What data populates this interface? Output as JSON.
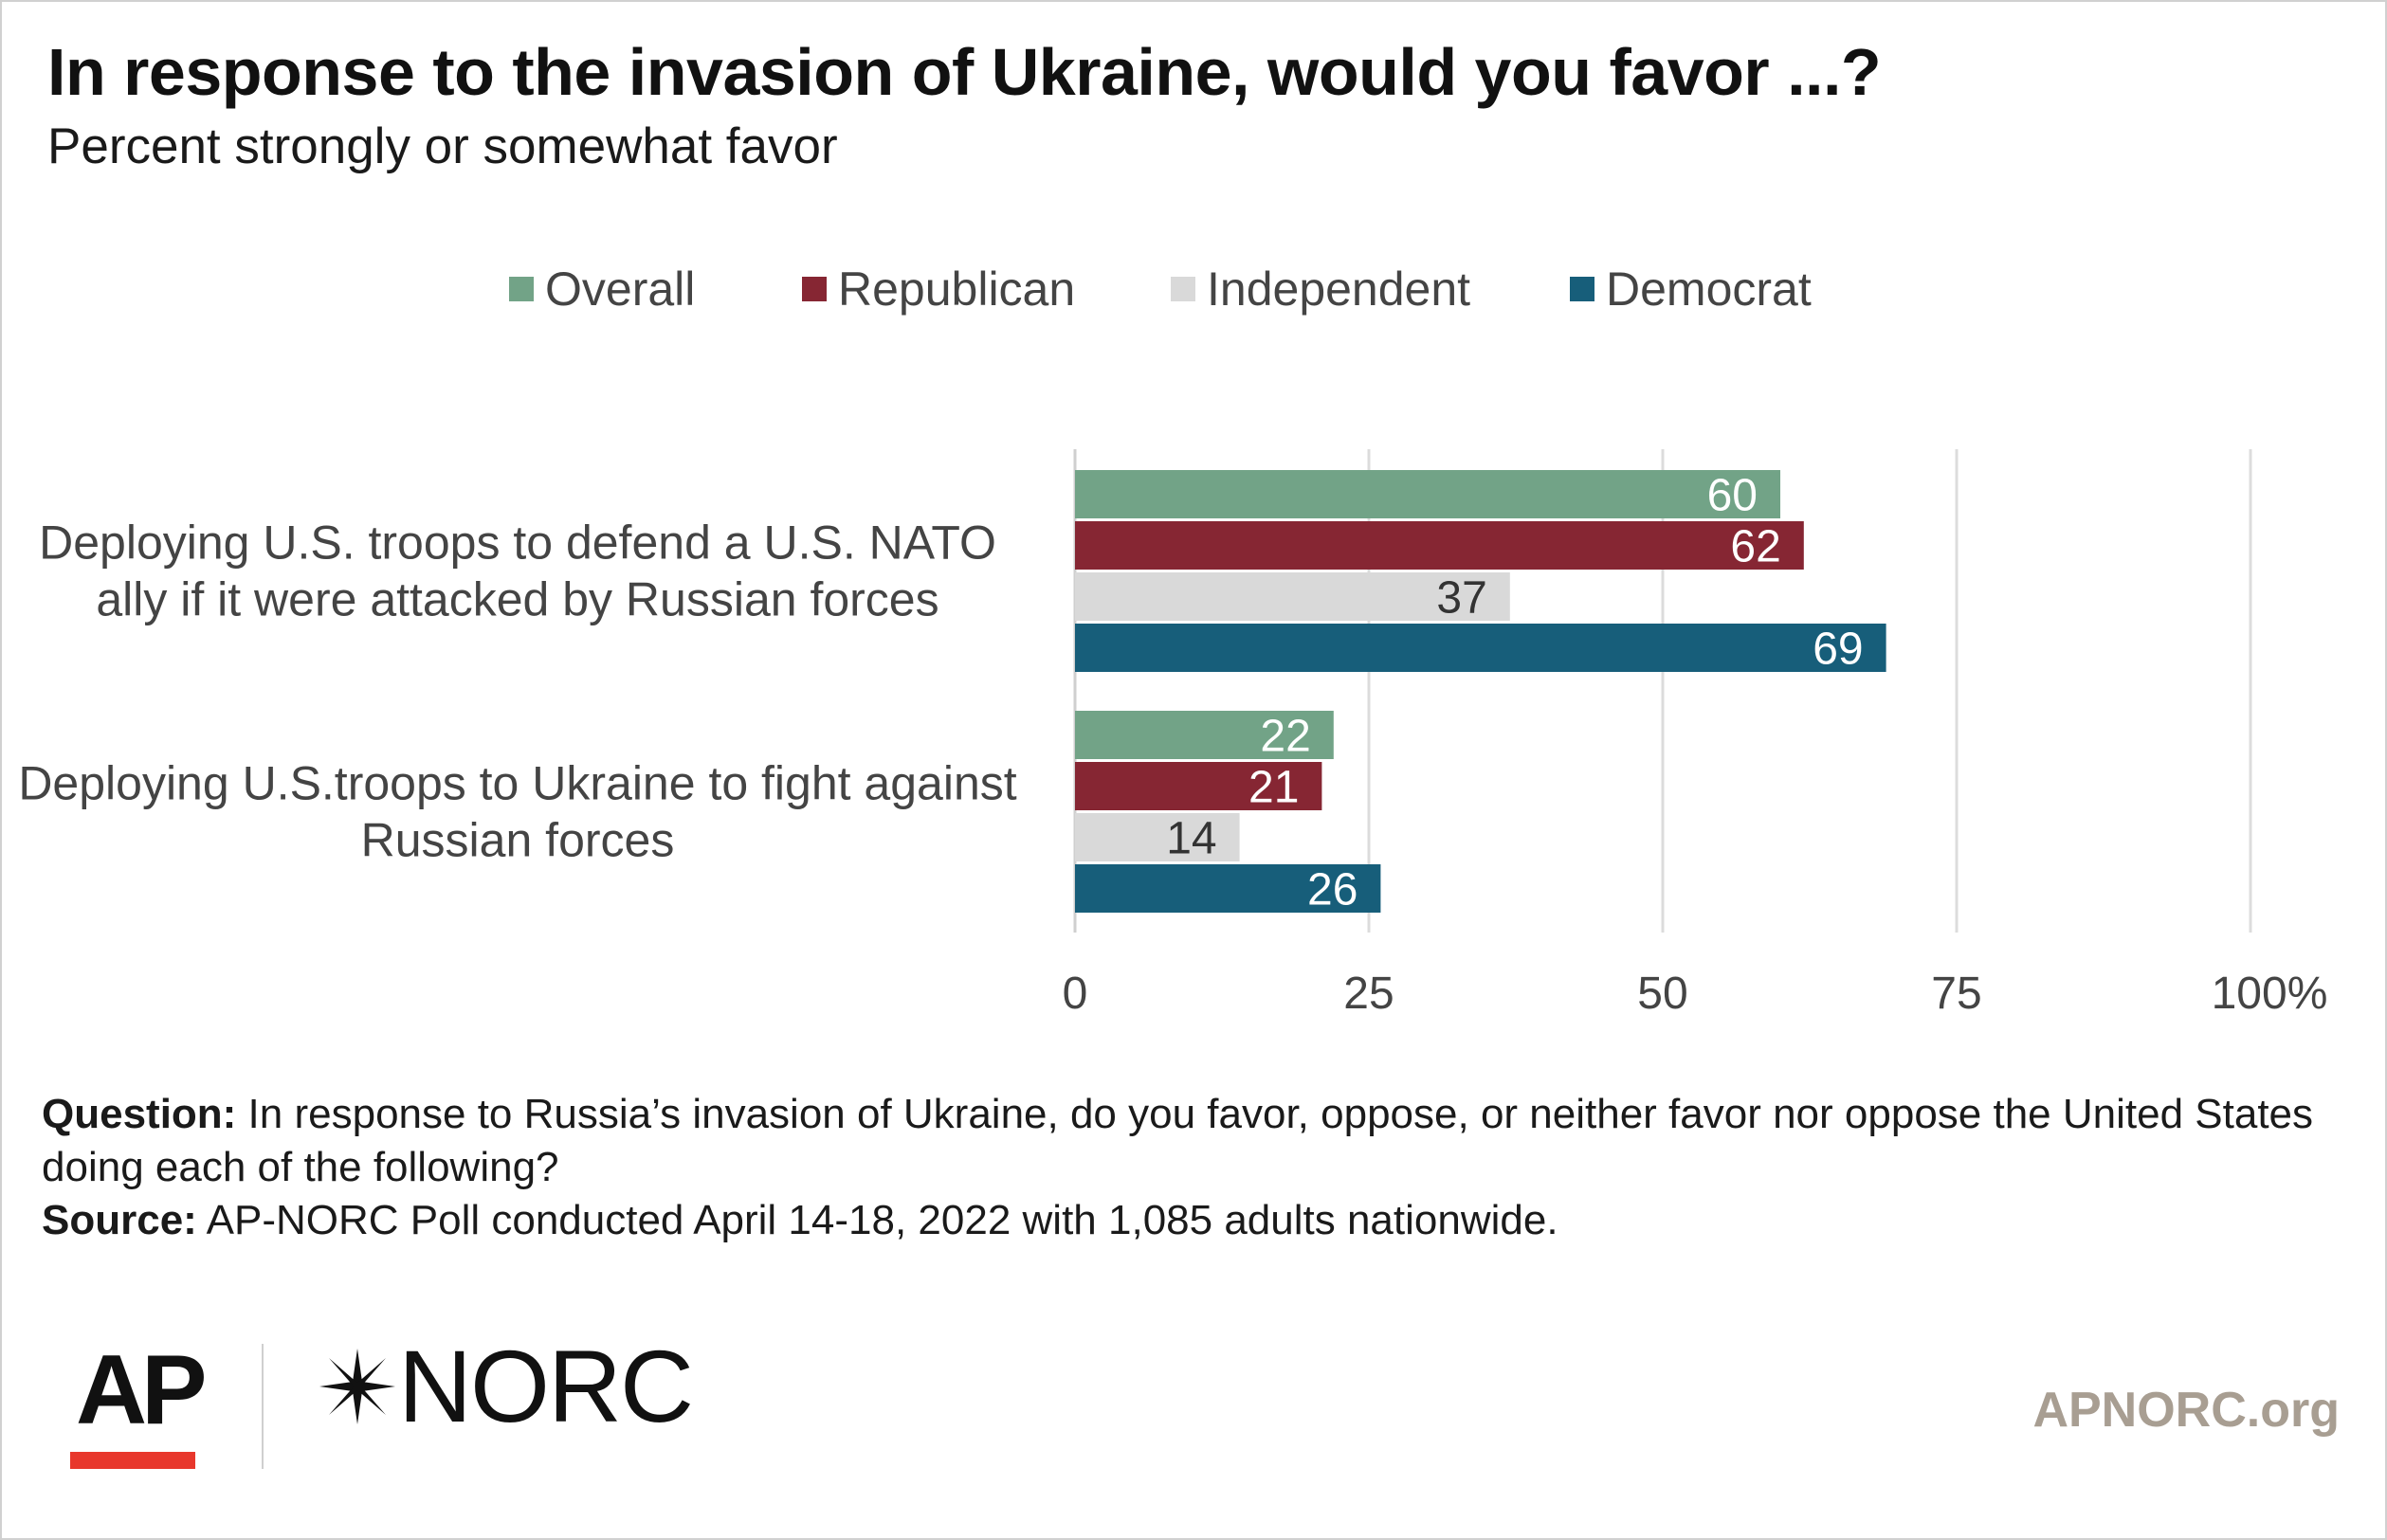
{
  "header": {
    "title": "In response to the invasion of Ukraine, would you favor ...?",
    "subtitle": "Percent strongly or somewhat favor"
  },
  "chart_data": {
    "type": "bar",
    "orientation": "horizontal",
    "title": "In response to the invasion of Ukraine, would you favor ...?",
    "subtitle": "Percent strongly or somewhat favor",
    "categories": [
      [
        "Deploying U.S. troops to defend a U.S. NATO",
        "ally if it were attacked by Russian forces"
      ],
      [
        "Deploying U.S.troops to Ukraine to fight against",
        "Russian forces"
      ]
    ],
    "series": [
      {
        "name": "Overall",
        "color": "#72a387",
        "label_color": "#ffffff",
        "values": [
          60,
          22
        ]
      },
      {
        "name": "Republican",
        "color": "#862633",
        "label_color": "#ffffff",
        "values": [
          62,
          21
        ]
      },
      {
        "name": "Independent",
        "color": "#d9d9d9",
        "label_color": "#333333",
        "values": [
          37,
          14
        ]
      },
      {
        "name": "Democrat",
        "color": "#175e7a",
        "label_color": "#ffffff",
        "values": [
          69,
          26
        ]
      }
    ],
    "xlim": [
      0,
      100
    ],
    "xticks": [
      {
        "value": 0,
        "label": "0"
      },
      {
        "value": 25,
        "label": "25"
      },
      {
        "value": 50,
        "label": "50"
      },
      {
        "value": 75,
        "label": "75"
      },
      {
        "value": 100,
        "label": "100%"
      }
    ],
    "grid": true,
    "legend": "top"
  },
  "notes": {
    "question_label": "Question:",
    "question_text": " In response to Russia’s invasion of Ukraine, do you favor, oppose, or neither favor nor oppose the United States doing each of the following?",
    "source_label": "Source:",
    "source_text": " AP-NORC Poll conducted April 14-18, 2022 with 1,085 adults nationwide."
  },
  "footer": {
    "logo_ap": "AP",
    "logo_norc": "NORC",
    "site": "APNORC.org",
    "colors": {
      "ap_red": "#e8372c",
      "site_gray": "#a89e92"
    }
  }
}
